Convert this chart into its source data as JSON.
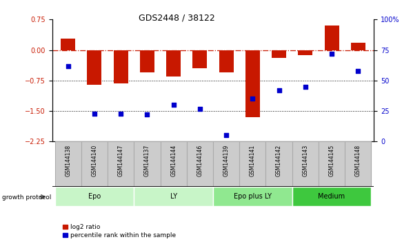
{
  "title": "GDS2448 / 38122",
  "samples": [
    "GSM144138",
    "GSM144140",
    "GSM144147",
    "GSM144137",
    "GSM144144",
    "GSM144146",
    "GSM144139",
    "GSM144141",
    "GSM144142",
    "GSM144143",
    "GSM144145",
    "GSM144148"
  ],
  "log2_ratio": [
    0.28,
    -0.85,
    -0.82,
    -0.55,
    -0.65,
    -0.45,
    -0.55,
    -1.65,
    -0.2,
    -0.12,
    0.6,
    0.18
  ],
  "percentile_rank": [
    62,
    23,
    23,
    22,
    30,
    27,
    5,
    35,
    42,
    45,
    72,
    58
  ],
  "groups": [
    {
      "label": "Epo",
      "start": 0,
      "end": 3,
      "color": "#c8f5c8"
    },
    {
      "label": "LY",
      "start": 3,
      "end": 6,
      "color": "#c8f5c8"
    },
    {
      "label": "Epo plus LY",
      "start": 6,
      "end": 9,
      "color": "#90e890"
    },
    {
      "label": "Medium",
      "start": 9,
      "end": 12,
      "color": "#3ec83e"
    }
  ],
  "bar_color": "#c81800",
  "dot_color": "#0000cc",
  "left_ylim": [
    -2.25,
    0.75
  ],
  "right_ylim": [
    0,
    100
  ],
  "left_yticks": [
    -2.25,
    -1.5,
    -0.75,
    0,
    0.75
  ],
  "right_yticks": [
    0,
    25,
    50,
    75,
    100
  ],
  "right_yticklabels": [
    "0",
    "25",
    "50",
    "75",
    "100%"
  ],
  "hline_color": "#c81800",
  "group_border_color": "#ffffff",
  "label_bg_color": "#cccccc",
  "label_border_color": "#aaaaaa"
}
